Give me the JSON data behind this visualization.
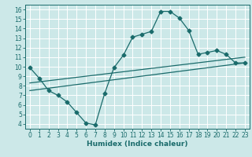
{
  "title": "",
  "xlabel": "Humidex (Indice chaleur)",
  "bg_color": "#cce8e8",
  "grid_color": "#ffffff",
  "line_color": "#1a6b6b",
  "xlim": [
    -0.5,
    23.5
  ],
  "ylim": [
    3.5,
    16.5
  ],
  "xticks": [
    0,
    1,
    2,
    3,
    4,
    5,
    6,
    7,
    8,
    9,
    10,
    11,
    12,
    13,
    14,
    15,
    16,
    17,
    18,
    19,
    20,
    21,
    22,
    23
  ],
  "yticks": [
    4,
    5,
    6,
    7,
    8,
    9,
    10,
    11,
    12,
    13,
    14,
    15,
    16
  ],
  "curve1_x": [
    0,
    1,
    2,
    3,
    4,
    5,
    6,
    7,
    8,
    9,
    10,
    11,
    12,
    13,
    14,
    15,
    16,
    17,
    18,
    19,
    20,
    21,
    22,
    23
  ],
  "curve1_y": [
    9.9,
    8.8,
    7.5,
    7.0,
    6.3,
    5.2,
    4.1,
    3.9,
    7.2,
    9.9,
    11.2,
    13.1,
    13.4,
    13.7,
    15.8,
    15.8,
    15.1,
    13.8,
    11.3,
    11.5,
    11.7,
    11.3,
    10.4,
    10.4
  ],
  "curve2_x": [
    0,
    23
  ],
  "curve2_y": [
    8.3,
    11.0
  ],
  "curve3_x": [
    0,
    23
  ],
  "curve3_y": [
    7.5,
    10.4
  ],
  "xlabel_fontsize": 6.5,
  "tick_fontsize": 5.5,
  "lw": 0.9,
  "ms": 2.5
}
